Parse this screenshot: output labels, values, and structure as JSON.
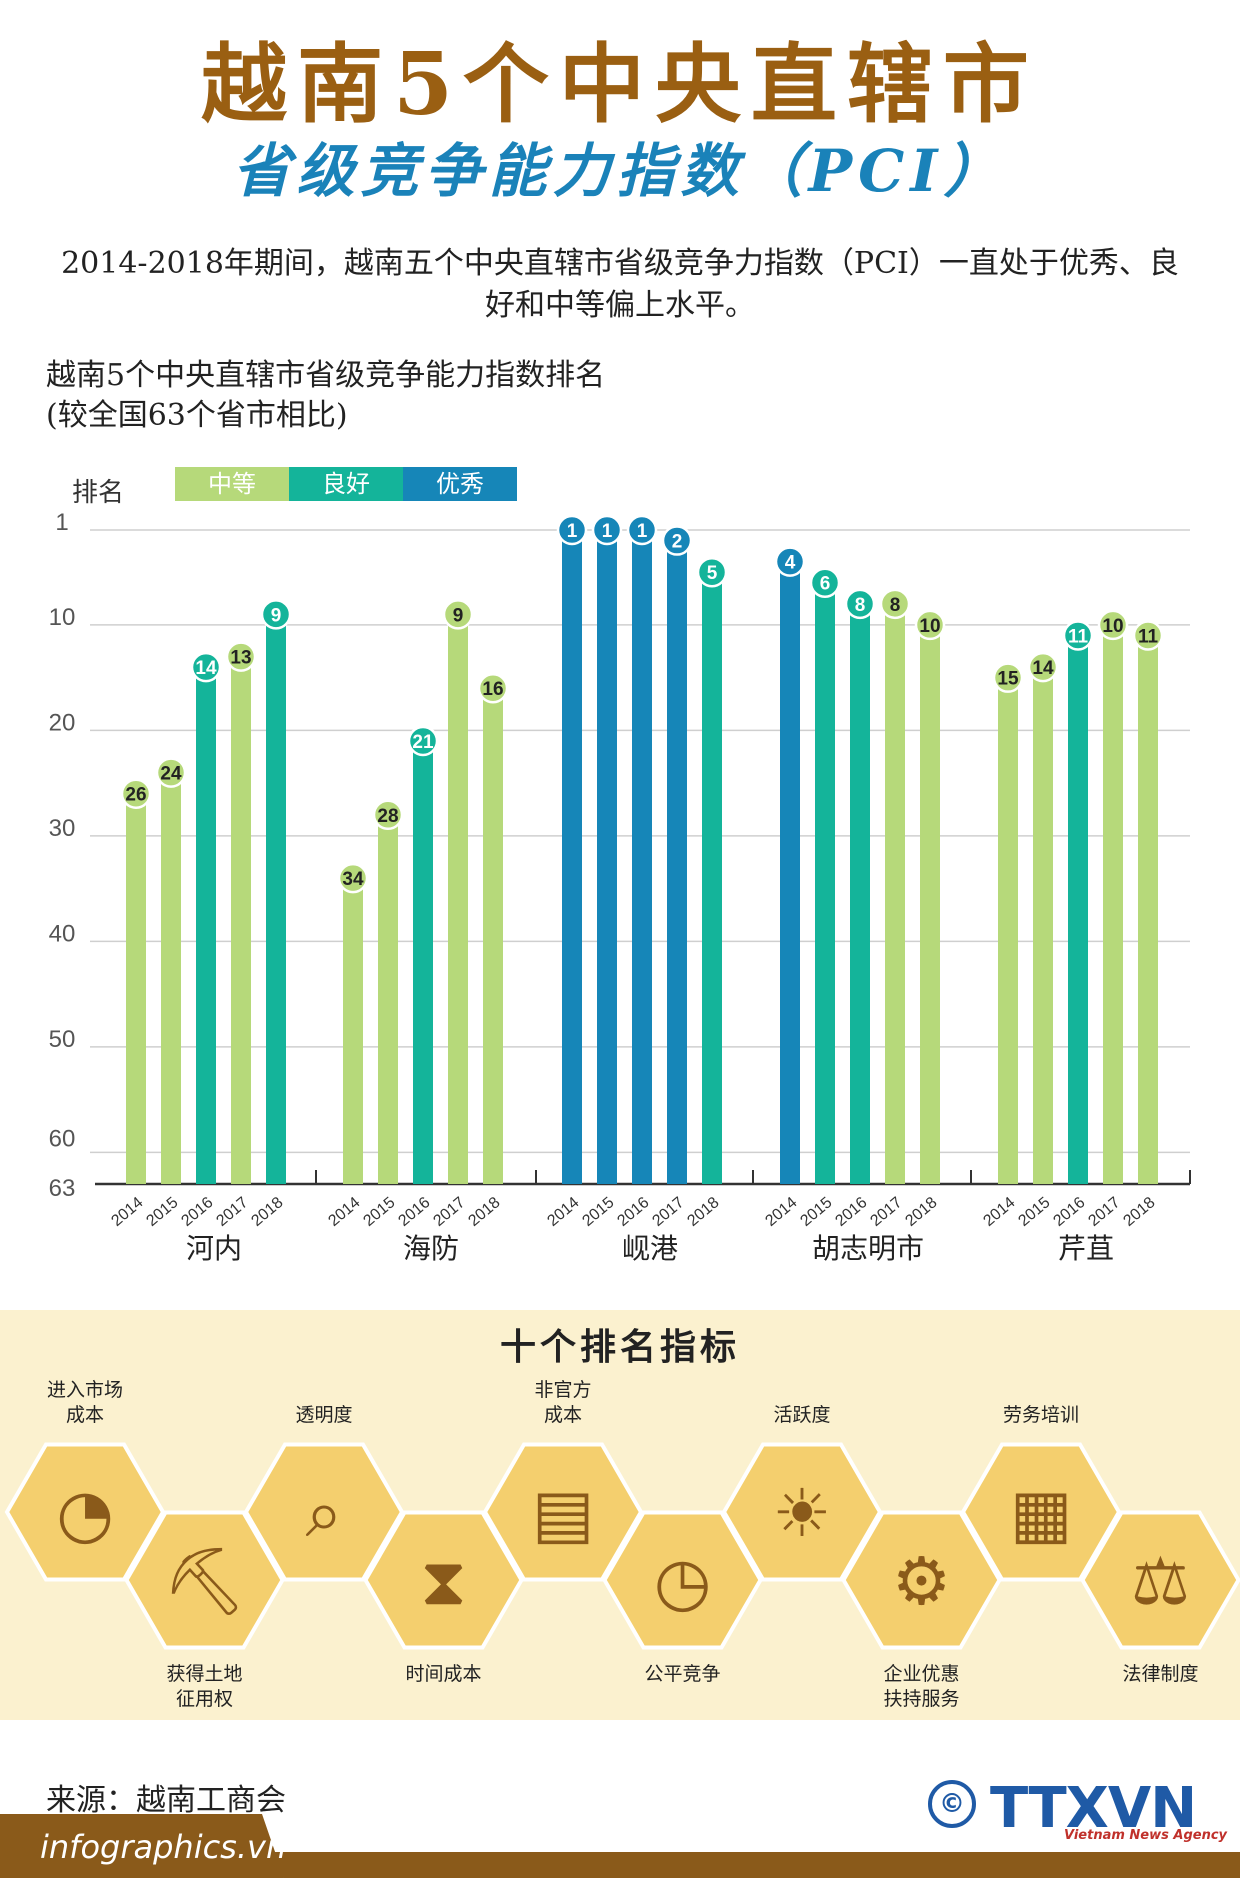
{
  "header": {
    "title_line1": "越南5个中央直辖市",
    "title_line2": "省级竞争能力指数（PCI）",
    "intro": "2014-2018年期间，越南五个中央直辖市省级竞争力指数（PCI）一直处于优秀、良好和中等偏上水平。"
  },
  "chart_data": {
    "type": "bar",
    "title": "越南5个中央直辖市省级竞争能力指数排名",
    "subtitle": "(较全国63个省市相比)",
    "ylabel": "排名",
    "yaxis": {
      "inverted": true,
      "range": [
        1,
        63
      ],
      "ticks": [
        1,
        10,
        20,
        30,
        40,
        50,
        60,
        63
      ]
    },
    "legend": [
      {
        "label": "中等",
        "color": "#b6d97a"
      },
      {
        "label": "良好",
        "color": "#14b49a"
      },
      {
        "label": "优秀",
        "color": "#1686b8"
      }
    ],
    "groups": [
      {
        "name": "河内",
        "years": [
          "2014",
          "2015",
          "2016",
          "2017",
          "2018"
        ],
        "ranks": [
          26,
          24,
          14,
          13,
          9
        ],
        "levels": [
          "中等",
          "中等",
          "良好",
          "中等",
          "良好"
        ]
      },
      {
        "name": "海防",
        "years": [
          "2014",
          "2015",
          "2016",
          "2017",
          "2018"
        ],
        "ranks": [
          34,
          28,
          21,
          9,
          16
        ],
        "levels": [
          "中等",
          "中等",
          "良好",
          "中等",
          "中等"
        ]
      },
      {
        "name": "岘港",
        "years": [
          "2014",
          "2015",
          "2016",
          "2017",
          "2018"
        ],
        "ranks": [
          1,
          1,
          1,
          2,
          5
        ],
        "levels": [
          "优秀",
          "优秀",
          "优秀",
          "优秀",
          "良好"
        ]
      },
      {
        "name": "胡志明市",
        "years": [
          "2014",
          "2015",
          "2016",
          "2017",
          "2018"
        ],
        "ranks": [
          4,
          6,
          8,
          8,
          10
        ],
        "levels": [
          "优秀",
          "良好",
          "良好",
          "中等",
          "中等"
        ]
      },
      {
        "name": "芹苴",
        "years": [
          "2014",
          "2015",
          "2016",
          "2017",
          "2018"
        ],
        "ranks": [
          15,
          14,
          11,
          10,
          11
        ],
        "levels": [
          "中等",
          "中等",
          "良好",
          "中等",
          "中等"
        ]
      }
    ],
    "grid": true
  },
  "indicators": {
    "title": "十个排名指标",
    "items": [
      {
        "label": "进入市场\n成本",
        "icon": "pie-chart-hand-icon",
        "row": "top"
      },
      {
        "label": "获得土地\n征用权",
        "icon": "shovel-icon",
        "row": "bottom"
      },
      {
        "label": "透明度",
        "icon": "magnifier-chart-icon",
        "row": "top"
      },
      {
        "label": "时间成本",
        "icon": "hourglass-icon",
        "row": "bottom"
      },
      {
        "label": "非官方\n成本",
        "icon": "money-stack-icon",
        "row": "top"
      },
      {
        "label": "公平竞争",
        "icon": "meeting-clock-icon",
        "row": "bottom"
      },
      {
        "label": "活跃度",
        "icon": "brain-bulb-icon",
        "row": "top"
      },
      {
        "label": "企业优惠\n扶持服务",
        "icon": "gear-hands-icon",
        "row": "bottom"
      },
      {
        "label": "劳务培训",
        "icon": "training-icon",
        "row": "top"
      },
      {
        "label": "法律制度",
        "icon": "scales-icon",
        "row": "bottom"
      }
    ],
    "hex_color": "#f4cf6e",
    "icon_color": "#8a5a1a"
  },
  "footer": {
    "source": "来源：越南工商会",
    "site": "infographics.vn",
    "logo": "TTXVN",
    "logo_sub": "Vietnam News Agency",
    "copyright_symbol": "©"
  }
}
